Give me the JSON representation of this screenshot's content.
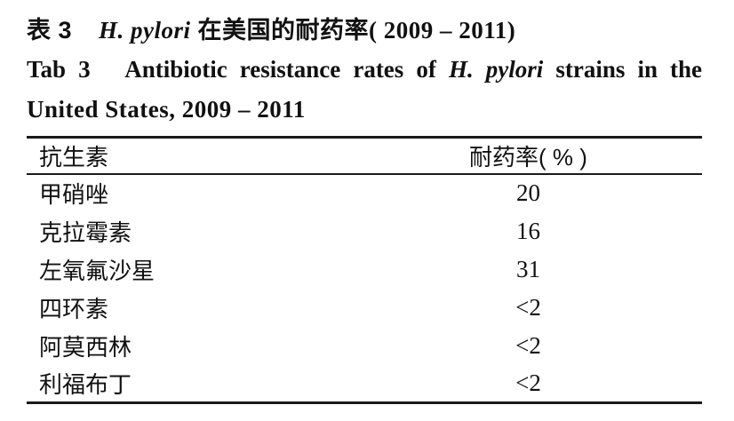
{
  "document": {
    "title_cn": {
      "label": "表 3",
      "species": "H. pylori",
      "rest_cn": "在美国的耐药率",
      "years": "( 2009 – 2011)"
    },
    "title_en": {
      "label": "Tab 3",
      "pre": "Antibiotic resistance rates of",
      "species": "H. pylori",
      "post_line1": "strains in the",
      "line2": "United States, 2009 – 2011"
    },
    "table": {
      "col_antibiotic": "抗生素",
      "col_rate": "耐药率( % )",
      "rows": [
        {
          "antibiotic": "甲硝唑",
          "rate": "20"
        },
        {
          "antibiotic": "克拉霉素",
          "rate": "16"
        },
        {
          "antibiotic": "左氧氟沙星",
          "rate": "31"
        },
        {
          "antibiotic": "四环素",
          "rate": "<2"
        },
        {
          "antibiotic": "阿莫西林",
          "rate": "<2"
        },
        {
          "antibiotic": "利福布丁",
          "rate": "<2"
        }
      ]
    },
    "colors": {
      "text": "#111111",
      "background": "#ffffff",
      "rule": "#1a1a1a"
    }
  }
}
